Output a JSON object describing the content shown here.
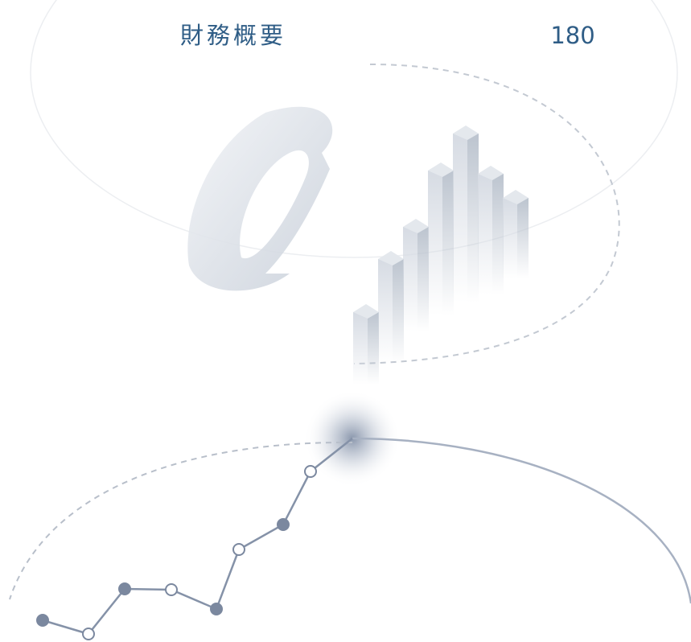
{
  "header": {
    "title": "財務概要",
    "value": "180"
  }
}
